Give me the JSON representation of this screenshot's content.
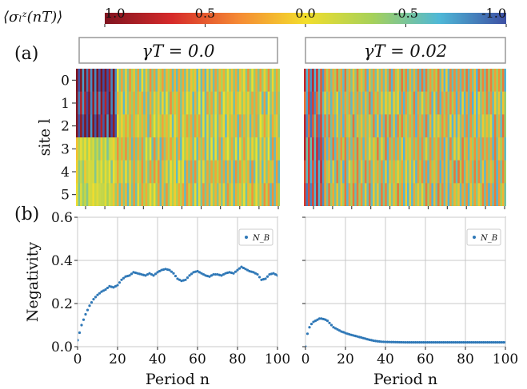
{
  "colorbar": {
    "label": "⟨σₗᶻ(nT)⟩",
    "ticks": [
      "1.0",
      "0.5",
      "0.0",
      "-0.5",
      "-1.0"
    ],
    "tick_values": [
      1.0,
      0.5,
      0.0,
      -0.5,
      -1.0
    ],
    "range": [
      1.0,
      -1.0
    ],
    "stops": [
      "#7f1420",
      "#d62a2a",
      "#f58a34",
      "#f3de2c",
      "#a6d15a",
      "#4fb8d7",
      "#3d4fa3"
    ]
  },
  "panel_labels": {
    "a": "(a)",
    "b": "(b)"
  },
  "headers": {
    "left": "γT = 0.0",
    "right": "γT = 0.02"
  },
  "heatmap": {
    "ylabel": "site l",
    "site_ticks": [
      "0",
      "1",
      "2",
      "3",
      "4",
      "5"
    ]
  },
  "line_panels": {
    "ylabel": "Negativity",
    "xlabel": "Period n",
    "legend": "N_B",
    "x_ticks": [
      "0",
      "20",
      "40",
      "60",
      "80",
      "100"
    ],
    "y_ticks": [
      "0.0",
      "0.2",
      "0.4",
      "0.6"
    ]
  },
  "chart_data": [
    {
      "type": "heatmap",
      "panel": "a-left",
      "header": "γT = 0.0",
      "ylabel": "site l",
      "rows": [
        "0",
        "1",
        "2",
        "3",
        "4",
        "5"
      ],
      "columns": 100,
      "value_range": [
        1.0,
        -1.0
      ],
      "regions": [
        {
          "sites": [
            0,
            2
          ],
          "n_range": [
            0,
            20
          ],
          "value": 0.95
        },
        {
          "sites": [
            3,
            5
          ],
          "n_range": [
            0,
            20
          ],
          "value": -0.05
        },
        {
          "sites": [
            0,
            5
          ],
          "n_range": [
            20,
            100
          ],
          "value": 0.15
        }
      ]
    },
    {
      "type": "heatmap",
      "panel": "a-right",
      "header": "γT = 0.02",
      "rows": [
        "0",
        "1",
        "2",
        "3",
        "4",
        "5"
      ],
      "columns": 100,
      "value_range": [
        1.0,
        -1.0
      ],
      "regions": [
        {
          "sites": [
            0,
            5
          ],
          "n_range": [
            0,
            10
          ],
          "value": 0.6
        },
        {
          "sites": [
            0,
            5
          ],
          "n_range": [
            10,
            100
          ],
          "value": 0.25
        }
      ]
    },
    {
      "type": "scatter",
      "panel": "b-left",
      "xlabel": "Period n",
      "ylabel": "Negativity",
      "xlim": [
        0,
        100
      ],
      "ylim": [
        0,
        0.6
      ],
      "grid": true,
      "legend_position": "top-right",
      "series": [
        {
          "name": "N_B",
          "x": [
            0,
            2,
            4,
            6,
            8,
            10,
            12,
            14,
            16,
            18,
            20,
            22,
            24,
            26,
            28,
            30,
            32,
            34,
            36,
            38,
            40,
            42,
            44,
            46,
            48,
            50,
            52,
            54,
            56,
            58,
            60,
            62,
            64,
            66,
            68,
            70,
            72,
            74,
            76,
            78,
            80,
            82,
            84,
            86,
            88,
            90,
            92,
            94,
            96,
            98,
            100
          ],
          "y": [
            0.03,
            0.1,
            0.15,
            0.19,
            0.22,
            0.24,
            0.255,
            0.265,
            0.28,
            0.275,
            0.285,
            0.31,
            0.325,
            0.33,
            0.345,
            0.34,
            0.335,
            0.33,
            0.34,
            0.33,
            0.345,
            0.355,
            0.36,
            0.355,
            0.34,
            0.315,
            0.305,
            0.31,
            0.33,
            0.345,
            0.35,
            0.34,
            0.33,
            0.325,
            0.335,
            0.335,
            0.33,
            0.34,
            0.345,
            0.34,
            0.355,
            0.37,
            0.36,
            0.35,
            0.345,
            0.335,
            0.31,
            0.315,
            0.335,
            0.34,
            0.33
          ]
        }
      ]
    },
    {
      "type": "scatter",
      "panel": "b-right",
      "xlabel": "Period n",
      "xlim": [
        0,
        100
      ],
      "ylim": [
        0,
        0.6
      ],
      "grid": true,
      "legend_position": "top-right",
      "series": [
        {
          "name": "N_B",
          "x": [
            0,
            1,
            2,
            3,
            4,
            5,
            6,
            7,
            8,
            9,
            10,
            11,
            12,
            13,
            14,
            15,
            16,
            17,
            18,
            19,
            20,
            22,
            24,
            26,
            28,
            30,
            32,
            34,
            36,
            38,
            40,
            45,
            50,
            55,
            60,
            65,
            70,
            75,
            80,
            85,
            90,
            95,
            100
          ],
          "y": [
            0.0,
            0.06,
            0.09,
            0.105,
            0.115,
            0.12,
            0.125,
            0.13,
            0.13,
            0.128,
            0.125,
            0.12,
            0.11,
            0.1,
            0.09,
            0.085,
            0.08,
            0.075,
            0.07,
            0.067,
            0.063,
            0.057,
            0.052,
            0.047,
            0.042,
            0.037,
            0.032,
            0.028,
            0.025,
            0.023,
            0.022,
            0.021,
            0.02,
            0.02,
            0.02,
            0.02,
            0.02,
            0.02,
            0.02,
            0.02,
            0.02,
            0.02,
            0.02
          ]
        }
      ]
    }
  ]
}
